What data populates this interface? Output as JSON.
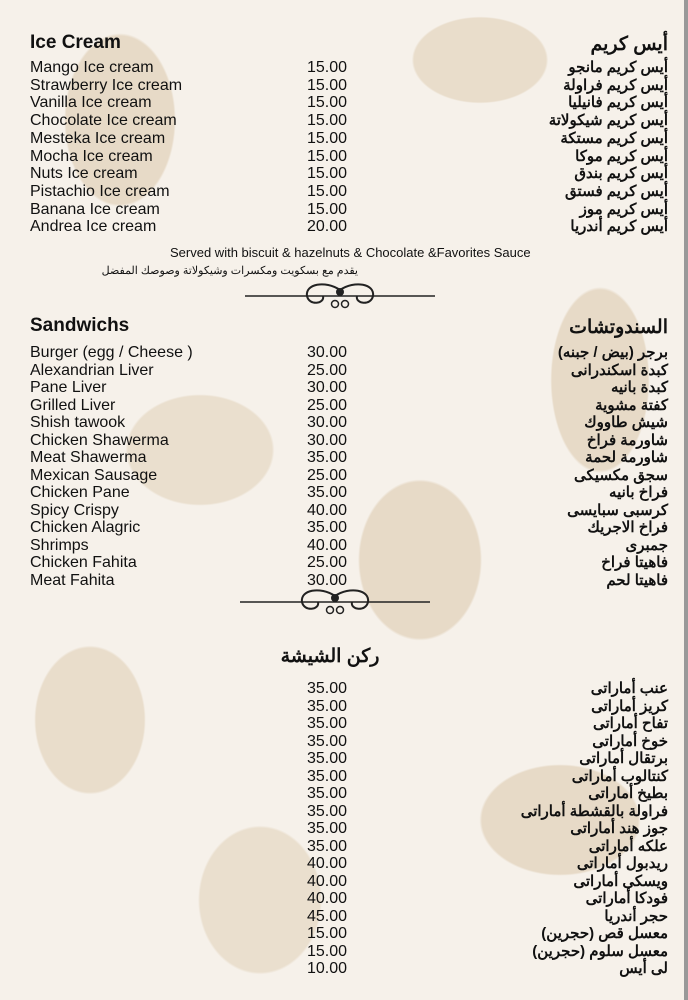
{
  "ice_cream": {
    "title_en": "Ice Cream",
    "title_ar": "أيس كريم",
    "items": [
      {
        "en": "Mango Ice cream",
        "price": "15.00",
        "ar": "أيس كريم مانجو"
      },
      {
        "en": "Strawberry Ice cream",
        "price": "15.00",
        "ar": "أيس كريم فراولة"
      },
      {
        "en": "Vanilla Ice cream",
        "price": "15.00",
        "ar": "أيس كريم فانيليا"
      },
      {
        "en": "Chocolate Ice cream",
        "price": "15.00",
        "ar": "أيس كريم شيكولاتة"
      },
      {
        "en": "Mesteka Ice cream",
        "price": "15.00",
        "ar": "أيس كريم مستكة"
      },
      {
        "en": "Mocha Ice cream",
        "price": "15.00",
        "ar": "أيس كريم موكا"
      },
      {
        "en": "Nuts Ice cream",
        "price": "15.00",
        "ar": "أيس كريم بندق"
      },
      {
        "en": "Pistachio Ice cream",
        "price": "15.00",
        "ar": "أيس كريم فستق"
      },
      {
        "en": "Banana Ice cream",
        "price": "15.00",
        "ar": "أيس كريم موز"
      },
      {
        "en": "Andrea Ice cream",
        "price": "20.00",
        "ar": "أيس كريم أندريا"
      }
    ],
    "note_en": "Served with biscuit & hazelnuts & Chocolate &Favorites Sauce",
    "note_ar": "يقدم مع بسكويت ومكسرات وشيكولاتة وصوصك المفضل"
  },
  "sandwiches": {
    "title_en": "Sandwichs",
    "title_ar": "السندوتشات",
    "items": [
      {
        "en": "Burger (egg / Cheese )",
        "price": "30.00",
        "ar": "برجر (بيض / جبنه)"
      },
      {
        "en": "Alexandrian Liver",
        "price": "25.00",
        "ar": "كبدة اسكندرانى"
      },
      {
        "en": "Pane Liver",
        "price": "30.00",
        "ar": "كبدة بانيه"
      },
      {
        "en": "Grilled Liver",
        "price": "25.00",
        "ar": "كفتة مشوية"
      },
      {
        "en": "Shish tawook",
        "price": "30.00",
        "ar": "شيش طاووك"
      },
      {
        "en": "Chicken Shawerma",
        "price": "30.00",
        "ar": "شاورمة فراخ"
      },
      {
        "en": "Meat Shawerma",
        "price": "35.00",
        "ar": "شاورمة لحمة"
      },
      {
        "en": "Mexican Sausage",
        "price": "25.00",
        "ar": "سجق مكسيكى"
      },
      {
        "en": "Chicken Pane",
        "price": "35.00",
        "ar": "فراخ بانيه"
      },
      {
        "en": "Spicy Crispy",
        "price": "40.00",
        "ar": "كرسبى سبايسى"
      },
      {
        "en": "Chicken Alagric",
        "price": "35.00",
        "ar": "فراخ الاجريك"
      },
      {
        "en": "Shrimps",
        "price": "40.00",
        "ar": "جمبرى"
      },
      {
        "en": "Chicken Fahita",
        "price": "25.00",
        "ar": "فاهيتا فراخ"
      },
      {
        "en": "Meat Fahita",
        "price": "30.00",
        "ar": "فاهيتا لحم"
      }
    ]
  },
  "shisha": {
    "title_ar": "ركن الشيشة",
    "items": [
      {
        "price": "35.00",
        "ar": "عنب أماراتى"
      },
      {
        "price": "35.00",
        "ar": "كريز أماراتى"
      },
      {
        "price": "35.00",
        "ar": "تفاح أماراتى"
      },
      {
        "price": "35.00",
        "ar": "خوخ أماراتى"
      },
      {
        "price": "35.00",
        "ar": "برتقال أماراتى"
      },
      {
        "price": "35.00",
        "ar": "كنتالوب أماراتى"
      },
      {
        "price": "35.00",
        "ar": "بطيخ أماراتى"
      },
      {
        "price": "35.00",
        "ar": "فراولة بالقشطة أماراتى"
      },
      {
        "price": "35.00",
        "ar": "جوز هند أماراتى"
      },
      {
        "price": "35.00",
        "ar": "علكه أماراتى"
      },
      {
        "price": "40.00",
        "ar": "ريدبول أماراتى"
      },
      {
        "price": "40.00",
        "ar": "ويسكى أماراتى"
      },
      {
        "price": "40.00",
        "ar": "فودكا أماراتى"
      },
      {
        "price": "45.00",
        "ar": "حجر أندريا"
      },
      {
        "price": "15.00",
        "ar": "معسل قص (حجرين)"
      },
      {
        "price": "15.00",
        "ar": "معسل سلوم (حجرين)"
      },
      {
        "price": "10.00",
        "ar": "لى أيس"
      }
    ]
  },
  "colors": {
    "background": "#f6f1ea",
    "pattern": "#e7dac7",
    "text": "#111111"
  }
}
